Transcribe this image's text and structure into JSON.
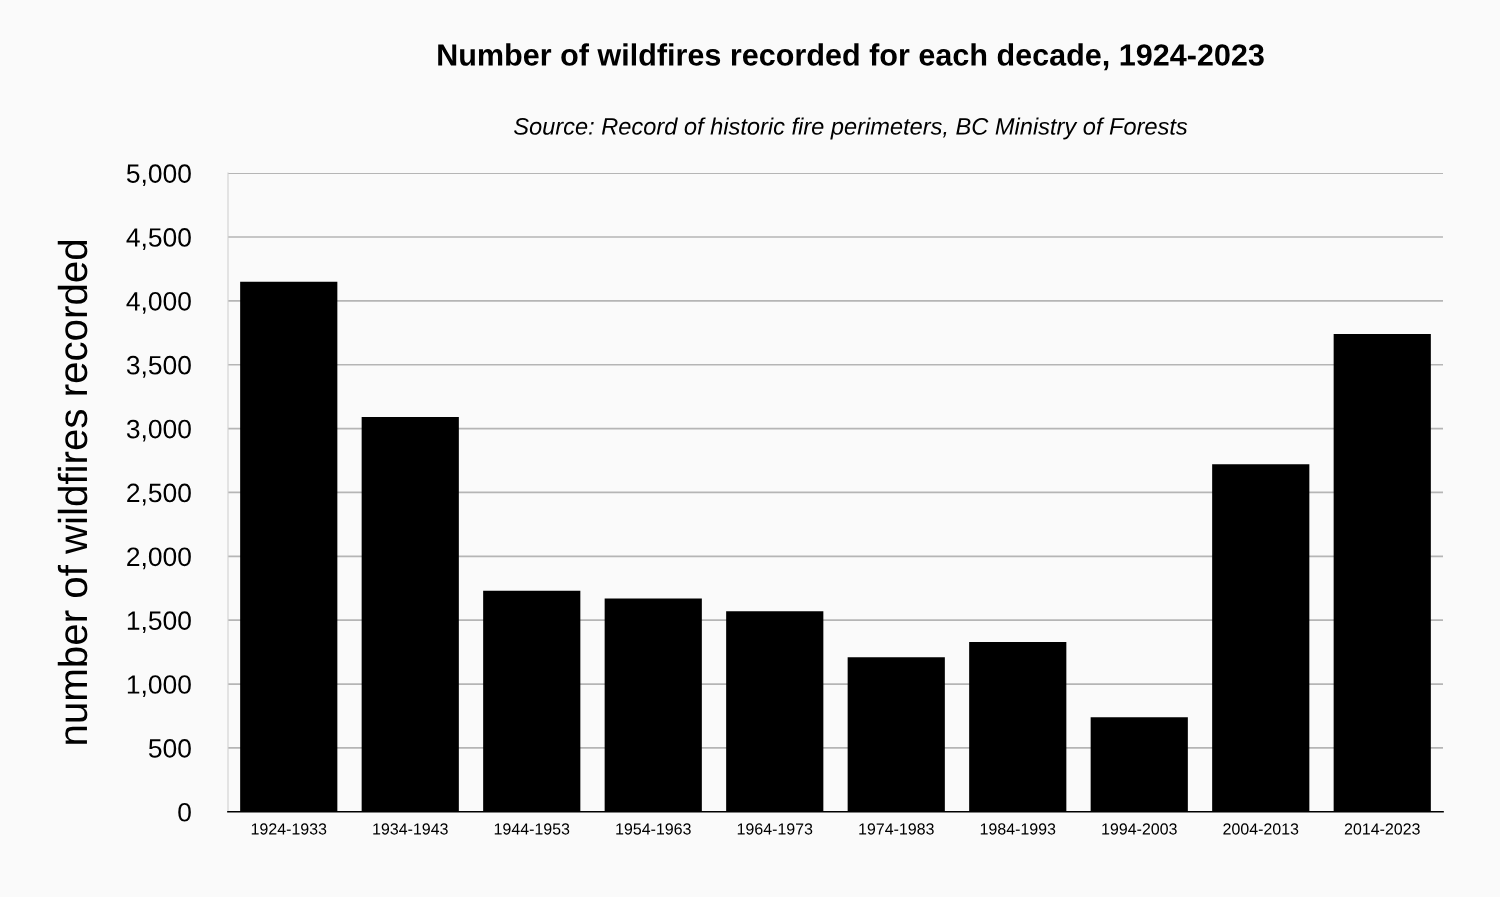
{
  "chart_data": {
    "type": "bar",
    "title": "Number of wildfires recorded for each decade, 1924-2023",
    "subtitle": "Source: Record of historic fire perimeters, BC Ministry of Forests",
    "ylabel": "number of wildfires recorded",
    "categories": [
      "1924-1933",
      "1934-1943",
      "1944-1953",
      "1954-1963",
      "1964-1973",
      "1974-1983",
      "1984-1993",
      "1994-2003",
      "2004-2013",
      "2014-2023"
    ],
    "values": [
      4150,
      3090,
      1730,
      1670,
      1570,
      1210,
      1330,
      740,
      2720,
      3740
    ],
    "color": "#000000",
    "ylim": [
      0,
      5000
    ],
    "yticks": [
      {
        "value": 0,
        "label": "0"
      },
      {
        "value": 500,
        "label": "500"
      },
      {
        "value": 1000,
        "label": "1,000"
      },
      {
        "value": 1500,
        "label": "1,500"
      },
      {
        "value": 2000,
        "label": "2,000"
      },
      {
        "value": 2500,
        "label": "2,500"
      },
      {
        "value": 3000,
        "label": "3,000"
      },
      {
        "value": 3500,
        "label": "3,500"
      },
      {
        "value": 4000,
        "label": "4,000"
      },
      {
        "value": 4500,
        "label": "4,500"
      },
      {
        "value": 5000,
        "label": "5,000"
      }
    ],
    "grid": "y"
  }
}
